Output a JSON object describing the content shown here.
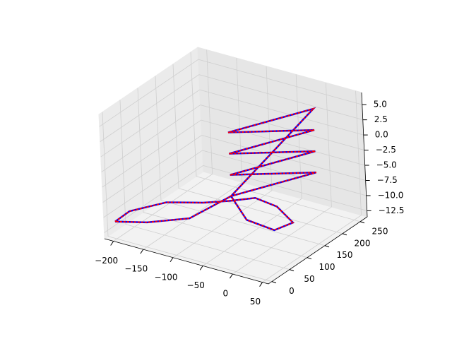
{
  "chart_data": {
    "type": "line3d",
    "xlim": [
      -215,
      60
    ],
    "ylim": [
      -10,
      270
    ],
    "zlim": [
      -13.5,
      7
    ],
    "xticks": [
      {
        "value": -200,
        "label": "−200"
      },
      {
        "value": -150,
        "label": "−150"
      },
      {
        "value": -100,
        "label": "−100"
      },
      {
        "value": -50,
        "label": "−50"
      },
      0,
      50
    ],
    "yticks": [
      0,
      50,
      100,
      150,
      200,
      250
    ],
    "zticks": [
      {
        "value": -12.5,
        "label": "−12.5"
      },
      {
        "value": -10,
        "label": "−10.0"
      },
      {
        "value": -7.5,
        "label": "−7.5"
      },
      {
        "value": -5,
        "label": "−5.0"
      },
      {
        "value": -2.5,
        "label": "−2.5"
      },
      {
        "value": 0,
        "label": "0.0"
      },
      {
        "value": 2.5,
        "label": "2.5"
      },
      {
        "value": 5,
        "label": "5.0"
      }
    ],
    "grid": true,
    "series": [
      {
        "color": "#0000ff",
        "x": [
          -205,
          -195,
          -150,
          -100,
          -60,
          -30,
          0,
          20,
          0,
          -40,
          -40,
          20,
          -40,
          20,
          -40,
          20,
          -40,
          20,
          -40,
          -100,
          -160,
          -205
        ],
        "y": [
          5,
          30,
          60,
          80,
          90,
          110,
          120,
          130,
          110,
          100,
          60,
          200,
          60,
          200,
          60,
          200,
          60,
          200,
          60,
          40,
          20,
          5
        ],
        "z": [
          -11,
          -10,
          -8.5,
          -8,
          -7,
          -6.5,
          -7.5,
          -10,
          -11,
          -10,
          -4.5,
          -4.5,
          -1,
          -1,
          2.5,
          2.5,
          6,
          6,
          -4.5,
          -9,
          -10.5,
          -11
        ]
      },
      {
        "color": "#ff0000",
        "x": [
          -205,
          -195,
          -150,
          -100,
          -60,
          -30,
          0,
          20,
          0,
          -40,
          -40,
          20,
          -40,
          20,
          -40,
          20,
          -40,
          20,
          -40,
          -100,
          -160,
          -205
        ],
        "y": [
          5,
          30,
          60,
          80,
          90,
          110,
          120,
          130,
          110,
          100,
          60,
          200,
          60,
          200,
          60,
          200,
          60,
          200,
          60,
          40,
          20,
          5
        ],
        "z": [
          -11,
          -10,
          -8.5,
          -8,
          -7,
          -6.5,
          -7.5,
          -10,
          -11,
          -10,
          -4.5,
          -4.5,
          -1,
          -1,
          2.5,
          2.5,
          6,
          6,
          -4.5,
          -9,
          -10.5,
          -11
        ]
      }
    ]
  }
}
